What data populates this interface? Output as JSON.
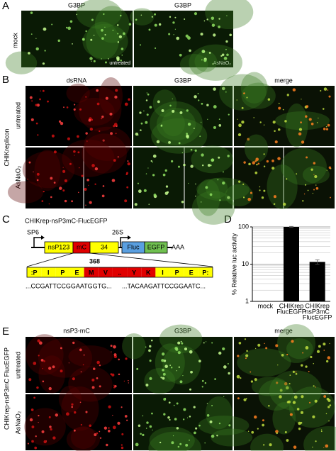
{
  "panel_a": {
    "label": "A",
    "row_label": "mock",
    "columns": [
      "G3BP",
      "G3BP"
    ],
    "image_labels": [
      "untreated",
      "AsNaO₂"
    ]
  },
  "panel_b": {
    "label": "B",
    "group_label": "CHIKreplicon",
    "columns": [
      "dsRNA",
      "G3BP",
      "merge"
    ],
    "rows": [
      "untreated",
      "AsNaO₂"
    ]
  },
  "panel_c": {
    "label": "C",
    "title": "CHIKrep-nsP3mC-FlucEGFP",
    "promoters": [
      "SP6",
      "26S"
    ],
    "genes": [
      "nsP123",
      "mC",
      "34",
      "Fluc",
      "EGFP"
    ],
    "gene_colors": [
      "#ffff00",
      "#e00000",
      "#ffff00",
      "#5a9fe0",
      "#70c050"
    ],
    "polyA": "AAA",
    "position": "368",
    "residues": [
      ":P",
      "I",
      "P",
      "E",
      "M",
      "V",
      "..",
      "Y",
      "K",
      "I",
      "P",
      "E",
      "P:"
    ],
    "residue_colors": [
      "#ffff00",
      "#ffff00",
      "#ffff00",
      "#ffff00",
      "#e00000",
      "#e00000",
      "#e00000",
      "#e00000",
      "#e00000",
      "#ffff00",
      "#ffff00",
      "#ffff00",
      "#ffff00"
    ],
    "sequences": [
      "...CCGATTCCGGAATGGTG...",
      "...TACAAGATTCCGGAATC..."
    ]
  },
  "panel_d": {
    "label": "D"
  },
  "chart_data": {
    "type": "bar",
    "y_label": "% Relative luc activity",
    "categories": [
      [
        "mock"
      ],
      [
        "CHIKrep",
        "FlucEGFP"
      ],
      [
        "CHIKrep",
        "nsP3mC",
        "FlucEGFP"
      ]
    ],
    "values": [
      1,
      100,
      11.5
    ],
    "errors": [
      null,
      3,
      1.5
    ],
    "color": "#000000",
    "ylim": [
      1,
      100
    ],
    "yticks": [
      1,
      10,
      100
    ],
    "log_scale": true,
    "grid": true
  },
  "panel_e": {
    "label": "E",
    "group_label": "CHIKrep-nsP3mC FlucEGFP",
    "columns": [
      "nsP3-mC",
      "G3BP",
      "merge"
    ],
    "rows": [
      "untreated",
      "AsNaO₂"
    ]
  }
}
